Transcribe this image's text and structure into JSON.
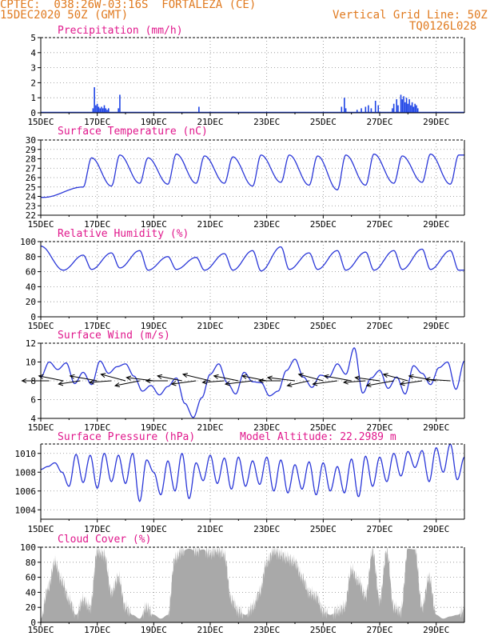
{
  "header": {
    "station": "CPTEC:  038:26W-03:16S  FORTALEZA (CE)",
    "date": "15DEC2020 50Z (GMT)",
    "grid_note": "Vertical Grid Line: 50Z",
    "code": "TQ0126L028"
  },
  "colors": {
    "header": "#e07a1f",
    "title": "#e0188c",
    "series": "#2a37d8",
    "bars": "#1f45e6",
    "cloud": "#a9a9a9",
    "wind_arrow": "#000000"
  },
  "chart_data": [
    {
      "type": "bar",
      "title": "Precipitation (mm/h)",
      "x_ticks": [
        "15DEC",
        "17DEC",
        "19DEC",
        "21DEC",
        "23DEC",
        "25DEC",
        "27DEC",
        "29DEC"
      ],
      "x_range_days": [
        15,
        30
      ],
      "ylim": [
        0,
        5
      ],
      "y_ticks": [
        "0",
        "1",
        "2",
        "3",
        "4",
        "5"
      ],
      "x": [
        16.85,
        16.9,
        16.95,
        17.0,
        17.05,
        17.1,
        17.15,
        17.2,
        17.25,
        17.3,
        17.35,
        17.4,
        17.75,
        17.8,
        20.6,
        25.65,
        25.75,
        25.8,
        26.2,
        26.35,
        26.5,
        26.6,
        26.7,
        26.85,
        26.95,
        27.45,
        27.5,
        27.6,
        27.65,
        27.75,
        27.8,
        27.85,
        27.9,
        27.95,
        28.0,
        28.05,
        28.1,
        28.15,
        28.2,
        28.25,
        28.3,
        28.35
      ],
      "values": [
        0.3,
        1.7,
        0.5,
        0.6,
        0.4,
        0.3,
        0.4,
        0.3,
        0.5,
        0.3,
        0.2,
        0.3,
        0.3,
        1.2,
        0.4,
        0.4,
        1.0,
        0.3,
        0.2,
        0.3,
        0.4,
        0.5,
        0.3,
        0.8,
        0.5,
        0.3,
        0.6,
        0.9,
        0.5,
        1.2,
        0.9,
        1.1,
        0.7,
        1.0,
        0.6,
        0.9,
        0.5,
        0.7,
        0.4,
        0.6,
        0.5,
        0.3
      ]
    },
    {
      "type": "line",
      "title": "Surface Temperature (nC)",
      "x_ticks": [
        "15DEC",
        "17DEC",
        "19DEC",
        "21DEC",
        "23DEC",
        "25DEC",
        "27DEC",
        "29DEC"
      ],
      "x_range_days": [
        15,
        30
      ],
      "ylim": [
        22,
        30
      ],
      "y_ticks": [
        "22",
        "23",
        "24",
        "25",
        "26",
        "27",
        "28",
        "29",
        "30"
      ],
      "diurnal": {
        "max_day": [
          16.8,
          17.8,
          18.8,
          19.8,
          20.8,
          21.8,
          22.8,
          23.8,
          24.8,
          25.8,
          26.8,
          27.8,
          28.8,
          29.8
        ],
        "max": [
          28.1,
          28.4,
          28.1,
          28.5,
          28.3,
          28.2,
          28.4,
          28.4,
          28.3,
          28.4,
          28.5,
          28.3,
          28.5,
          28.4
        ],
        "min_day": [
          15.1,
          16.5,
          17.5,
          18.5,
          19.5,
          20.5,
          21.5,
          22.5,
          23.5,
          24.5,
          25.5,
          26.5,
          27.5,
          28.5,
          29.5
        ],
        "min": [
          23.9,
          25.0,
          25.1,
          25.4,
          25.3,
          25.4,
          25.4,
          25.1,
          25.5,
          25.2,
          24.7,
          25.2,
          25.4,
          25.5,
          25.3
        ]
      }
    },
    {
      "type": "line",
      "title": "Relative Humidity (%)",
      "x_ticks": [
        "15DEC",
        "17DEC",
        "19DEC",
        "21DEC",
        "23DEC",
        "25DEC",
        "27DEC",
        "29DEC"
      ],
      "x_range_days": [
        15,
        30
      ],
      "ylim": [
        0,
        100
      ],
      "y_ticks": [
        "0",
        "20",
        "40",
        "60",
        "80",
        "100"
      ],
      "diurnal": {
        "max_day": [
          15.0,
          16.5,
          17.5,
          18.5,
          19.5,
          20.5,
          21.5,
          22.5,
          23.5,
          24.5,
          25.5,
          26.5,
          27.5,
          28.5,
          29.5
        ],
        "max": [
          94,
          82,
          85,
          88,
          80,
          79,
          84,
          88,
          93,
          85,
          88,
          86,
          88,
          90,
          88
        ],
        "min_day": [
          15.8,
          16.8,
          17.8,
          18.8,
          19.8,
          20.8,
          21.8,
          22.8,
          23.8,
          24.8,
          25.8,
          26.8,
          27.8,
          28.8,
          29.8
        ],
        "min": [
          62,
          63,
          65,
          62,
          63,
          62,
          62,
          61,
          63,
          63,
          62,
          62,
          63,
          63,
          62
        ]
      }
    },
    {
      "type": "line",
      "title": "Surface Wind (m/s)",
      "x_ticks": [
        "15DEC",
        "17DEC",
        "19DEC",
        "21DEC",
        "23DEC",
        "25DEC",
        "27DEC",
        "29DEC"
      ],
      "x_range_days": [
        15,
        30
      ],
      "ylim": [
        4,
        12
      ],
      "y_ticks": [
        "4",
        "6",
        "8",
        "10",
        "12"
      ],
      "speed": {
        "x": [
          15.0,
          15.3,
          15.6,
          15.9,
          16.2,
          16.5,
          16.8,
          17.1,
          17.4,
          17.7,
          18.0,
          18.3,
          18.6,
          18.9,
          19.2,
          19.5,
          19.8,
          20.1,
          20.4,
          20.7,
          21.0,
          21.3,
          21.6,
          21.9,
          22.2,
          22.5,
          22.8,
          23.1,
          23.4,
          23.7,
          24.0,
          24.3,
          24.6,
          24.9,
          25.2,
          25.5,
          25.8,
          26.1,
          26.4,
          26.7,
          27.0,
          27.3,
          27.6,
          27.9,
          28.2,
          28.5,
          28.8,
          29.1,
          29.4,
          29.7,
          30.0
        ],
        "values": [
          8.4,
          10.0,
          9.2,
          9.9,
          7.7,
          8.9,
          7.6,
          10.1,
          8.8,
          9.5,
          9.8,
          8.5,
          6.9,
          7.5,
          6.5,
          7.4,
          8.3,
          5.6,
          4.1,
          6.2,
          8.7,
          9.8,
          7.8,
          6.6,
          8.9,
          7.9,
          7.8,
          6.4,
          6.9,
          9.1,
          10.3,
          8.4,
          7.3,
          8.6,
          8.4,
          9.8,
          8.7,
          11.5,
          6.7,
          8.3,
          9.1,
          7.2,
          8.4,
          6.6,
          9.6,
          8.8,
          7.6,
          9.4,
          10.0,
          7.1,
          10.1
        ]
      },
      "vectors": {
        "x": [
          15.3,
          15.8,
          16.4,
          17.0,
          17.5,
          18.0,
          18.5,
          19.0,
          19.5,
          20.0,
          20.5,
          21.0,
          21.5,
          22.0,
          22.5,
          23.0,
          23.5,
          24.0,
          24.5,
          25.0,
          25.5,
          26.0,
          26.5,
          27.0,
          27.5,
          28.0,
          28.5,
          29.0,
          29.5
        ],
        "u": [
          -1.0,
          -0.9,
          -0.8,
          -1.0,
          -0.8,
          -0.9,
          -0.9,
          -1.0,
          -0.8,
          -0.9,
          -0.9,
          -1.0,
          -0.8,
          -0.9,
          -1.0,
          -0.9,
          -0.8,
          -1.0,
          -0.8,
          -0.9,
          -0.9,
          -1.0,
          -0.8,
          -0.9,
          -1.0,
          -0.9,
          -0.8,
          -1.0,
          -0.9
        ],
        "v": [
          0.0,
          0.3,
          -0.2,
          0.3,
          -0.1,
          0.4,
          -0.3,
          0.2,
          0.0,
          0.3,
          -0.2,
          0.4,
          -0.1,
          0.3,
          -0.2,
          0.3,
          0.0,
          0.2,
          -0.3,
          0.4,
          -0.2,
          0.3,
          -0.1,
          0.2,
          -0.3,
          0.4,
          -0.2,
          0.3,
          0.1
        ]
      }
    },
    {
      "type": "line",
      "title": "Surface Pressure (hPa)",
      "annotation": "Model Altitude: 22.2989 m",
      "x_ticks": [
        "15DEC",
        "17DEC",
        "19DEC",
        "21DEC",
        "23DEC",
        "25DEC",
        "27DEC",
        "29DEC"
      ],
      "x_range_days": [
        15,
        30
      ],
      "ylim": [
        1003,
        1011
      ],
      "y_ticks": [
        "1004",
        "1006",
        "1008",
        "1010"
      ],
      "x": [
        15.0,
        15.25,
        15.5,
        15.75,
        16.0,
        16.25,
        16.5,
        16.75,
        17.0,
        17.25,
        17.5,
        17.75,
        18.0,
        18.25,
        18.5,
        18.75,
        19.0,
        19.25,
        19.5,
        19.75,
        20.0,
        20.25,
        20.5,
        20.75,
        21.0,
        21.25,
        21.5,
        21.75,
        22.0,
        22.25,
        22.5,
        22.75,
        23.0,
        23.25,
        23.5,
        23.75,
        24.0,
        24.25,
        24.5,
        24.75,
        25.0,
        25.25,
        25.5,
        25.75,
        26.0,
        26.25,
        26.5,
        26.75,
        27.0,
        27.25,
        27.5,
        27.75,
        28.0,
        28.25,
        28.5,
        28.75,
        29.0,
        29.25,
        29.5,
        29.75,
        30.0
      ],
      "values": [
        1008.3,
        1008.6,
        1009.0,
        1008.0,
        1006.5,
        1009.9,
        1006.9,
        1009.8,
        1006.3,
        1010.0,
        1007.0,
        1009.8,
        1006.8,
        1010.0,
        1004.9,
        1009.3,
        1008.0,
        1005.6,
        1009.2,
        1006.0,
        1010.0,
        1005.2,
        1009.0,
        1007.1,
        1009.8,
        1006.8,
        1009.5,
        1006.2,
        1009.6,
        1006.5,
        1009.2,
        1006.7,
        1009.6,
        1006.0,
        1009.3,
        1005.8,
        1008.8,
        1006.2,
        1009.1,
        1005.6,
        1009.0,
        1006.0,
        1008.6,
        1005.8,
        1009.4,
        1005.4,
        1009.7,
        1006.5,
        1009.6,
        1007.0,
        1010.0,
        1007.6,
        1010.2,
        1008.5,
        1010.3,
        1007.0,
        1010.6,
        1008.0,
        1011.0,
        1007.2,
        1009.6
      ]
    },
    {
      "type": "area",
      "title": "Cloud Cover (%)",
      "x_ticks": [
        "15DEC",
        "17DEC",
        "19DEC",
        "21DEC",
        "23DEC",
        "25DEC",
        "27DEC",
        "29DEC"
      ],
      "x_range_days": [
        15,
        30
      ],
      "ylim": [
        0,
        100
      ],
      "y_ticks": [
        "0",
        "20",
        "40",
        "60",
        "80",
        "100"
      ],
      "x": [
        15.0,
        15.25,
        15.5,
        15.75,
        16.0,
        16.25,
        16.5,
        16.75,
        17.0,
        17.25,
        17.5,
        17.75,
        18.0,
        18.25,
        18.5,
        18.75,
        19.0,
        19.25,
        19.5,
        19.75,
        20.0,
        20.25,
        20.5,
        20.75,
        21.0,
        21.25,
        21.5,
        21.75,
        22.0,
        22.25,
        22.5,
        22.75,
        23.0,
        23.25,
        23.5,
        23.75,
        24.0,
        24.25,
        24.5,
        24.75,
        25.0,
        25.25,
        25.5,
        25.75,
        26.0,
        26.25,
        26.5,
        26.75,
        27.0,
        27.25,
        27.5,
        27.75,
        28.0,
        28.25,
        28.5,
        28.75,
        29.0,
        29.25,
        29.5,
        29.75,
        30.0
      ],
      "values": [
        5,
        45,
        80,
        55,
        30,
        10,
        30,
        20,
        95,
        90,
        40,
        60,
        20,
        10,
        5,
        20,
        10,
        5,
        10,
        85,
        95,
        98,
        95,
        97,
        92,
        96,
        90,
        30,
        15,
        10,
        20,
        40,
        80,
        95,
        90,
        85,
        80,
        60,
        40,
        35,
        15,
        10,
        15,
        20,
        70,
        55,
        35,
        95,
        30,
        95,
        20,
        15,
        98,
        97,
        20,
        60,
        10,
        5,
        8,
        10,
        15
      ]
    }
  ]
}
